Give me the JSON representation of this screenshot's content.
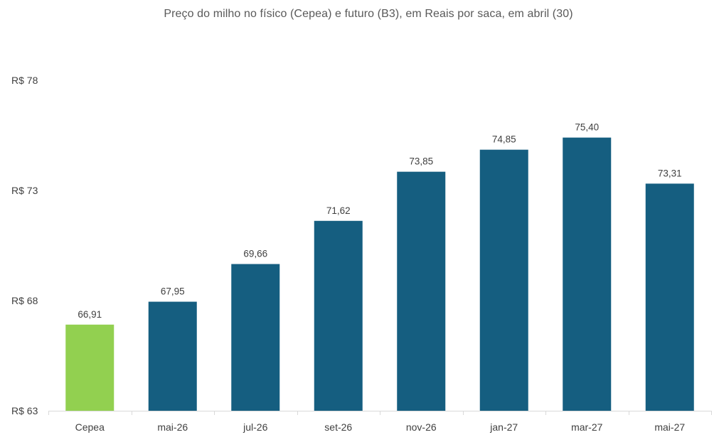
{
  "chart_data": {
    "type": "bar",
    "title": "Preço do milho no físico (Cepea) e futuro (B3), em Reais por saca, em abril (30)",
    "categories": [
      "Cepea",
      "mai-26",
      "jul-26",
      "set-26",
      "nov-26",
      "jan-27",
      "mar-27",
      "mai-27"
    ],
    "values": [
      66.91,
      67.95,
      69.66,
      71.62,
      73.85,
      74.85,
      75.4,
      73.31
    ],
    "data_labels": [
      "66,91",
      "67,95",
      "69,66",
      "71,62",
      "73,85",
      "74,85",
      "75,40",
      "73,31"
    ],
    "bar_colors": [
      "#92d050",
      "#155e80",
      "#155e80",
      "#155e80",
      "#155e80",
      "#155e80",
      "#155e80",
      "#155e80"
    ],
    "ylim": [
      63,
      78
    ],
    "yticks": [
      63,
      68,
      73,
      78
    ],
    "ytick_labels": [
      "R$ 63",
      "R$ 68",
      "R$ 73",
      "R$ 78"
    ],
    "xlabel": "",
    "ylabel": "",
    "grid": false,
    "legend": "none"
  }
}
